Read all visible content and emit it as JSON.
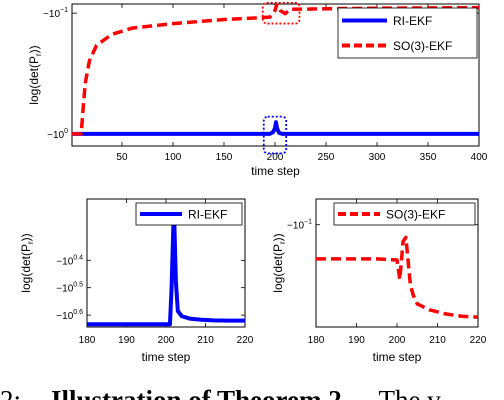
{
  "chart_data": [
    {
      "type": "line",
      "title": "",
      "xlabel": "time step",
      "ylabel": "log(det(P",
      "ylabel_sub": "r",
      "ylabel_tail": "))",
      "yscale": "log-negative",
      "xlim": [
        1,
        400
      ],
      "ylim": [
        -1.26,
        -0.084
      ],
      "grid": false,
      "legend_position": "top-right",
      "x_ticks": [
        50,
        100,
        150,
        200,
        250,
        300,
        350,
        400
      ],
      "y_ticks": [
        {
          "value": -1,
          "base": "−10",
          "exp": "0"
        },
        {
          "value": -0.1,
          "base": "−10",
          "exp": "−1"
        }
      ],
      "series": [
        {
          "name": "RI-EKF",
          "color": "#0000ff",
          "dash": "solid",
          "x": [
            1,
            195,
            198,
            200,
            201,
            202,
            204,
            207,
            400
          ],
          "y": [
            -1.0,
            -1.0,
            -0.97,
            -0.9,
            -0.8,
            -0.9,
            -0.98,
            -1.0,
            -1.0
          ]
        },
        {
          "name": "SO(3)-EKF",
          "color": "#ff0000",
          "dash": "dashed",
          "x": [
            1,
            10,
            12,
            14,
            18,
            25,
            40,
            60,
            100,
            150,
            195,
            200,
            202,
            205,
            210,
            215,
            250,
            300,
            400
          ],
          "y": [
            -1.0,
            -1.0,
            -0.6,
            -0.38,
            -0.25,
            -0.185,
            -0.15,
            -0.133,
            -0.122,
            -0.113,
            -0.108,
            -0.095,
            -0.084,
            -0.095,
            -0.101,
            -0.093,
            -0.092,
            -0.091,
            -0.09
          ]
        }
      ],
      "highlight_boxes": [
        {
          "color": "#0000ff",
          "x_range": [
            189,
            211
          ],
          "y_range": [
            -1.45,
            -0.72
          ]
        },
        {
          "color": "#ff0000",
          "x_range": [
            188,
            224
          ],
          "y_range": [
            -0.122,
            -0.082
          ]
        }
      ]
    },
    {
      "type": "line",
      "title": "",
      "xlabel": "time step",
      "ylabel": "log(det(P",
      "ylabel_sub": "r",
      "ylabel_tail": "))",
      "yscale": "log-negative",
      "xlim": [
        180,
        220
      ],
      "ylim": [
        -4.4,
        -1.5
      ],
      "grid": false,
      "legend_position": "top-right",
      "x_ticks": [
        180,
        190,
        200,
        210,
        220
      ],
      "y_ticks": [
        {
          "value": -2.512,
          "base": "−10",
          "exp": "0.4"
        },
        {
          "value": -3.162,
          "base": "−10",
          "exp": "0.5"
        },
        {
          "value": -3.981,
          "base": "−10",
          "exp": "0.6"
        }
      ],
      "series": [
        {
          "name": "RI-EKF",
          "color": "#0000ff",
          "dash": "solid",
          "x": [
            180,
            201,
            201.4,
            202,
            202.5,
            203,
            204,
            206,
            209,
            212,
            216,
            220
          ],
          "y": [
            -4.3,
            -4.3,
            -3.2,
            -1.6,
            -3.0,
            -3.85,
            -4.02,
            -4.1,
            -4.14,
            -4.16,
            -4.17,
            -4.17
          ]
        }
      ]
    },
    {
      "type": "line",
      "title": "",
      "xlabel": "time step",
      "ylabel": "log(det(P",
      "ylabel_sub": "r",
      "ylabel_tail": "))",
      "yscale": "log-negative",
      "xlim": [
        180,
        220
      ],
      "ylim": [
        -0.2,
        -0.084
      ],
      "grid": false,
      "legend_position": "top-right",
      "x_ticks": [
        180,
        190,
        200,
        210,
        220
      ],
      "y_ticks": [
        {
          "value": -0.1,
          "base": "−10",
          "exp": "−1"
        }
      ],
      "series": [
        {
          "name": "SO(3)-EKF",
          "color": "#ff0000",
          "dash": "dashed",
          "x": [
            180,
            195,
            200,
            200.7,
            201.5,
            202.2,
            202.8,
            203.3,
            204,
            205,
            208,
            212,
            216,
            220
          ],
          "y": [
            -0.126,
            -0.126,
            -0.127,
            -0.145,
            -0.112,
            -0.109,
            -0.13,
            -0.15,
            -0.161,
            -0.171,
            -0.178,
            -0.183,
            -0.186,
            -0.187
          ]
        }
      ]
    }
  ],
  "caption": {
    "prefix": "2:",
    "bold": "Illustration of Theorem 2.",
    "tail": "The v"
  }
}
